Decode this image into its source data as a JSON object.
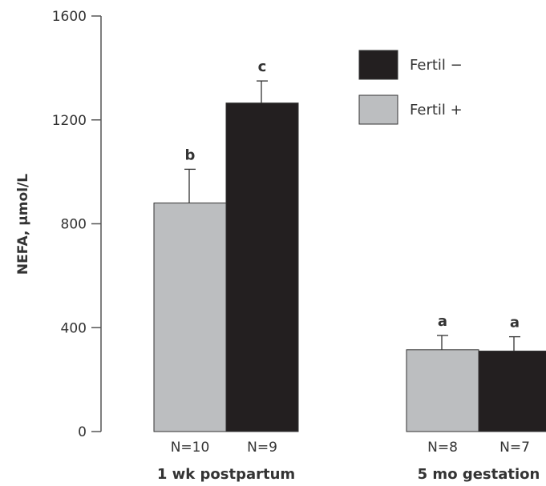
{
  "chart_data": {
    "type": "bar",
    "title": "",
    "xlabel": "",
    "ylabel": "NEFA, µmol/L",
    "ylim": [
      0,
      1600
    ],
    "yticks": [
      0,
      400,
      800,
      1200,
      1600
    ],
    "grid": false,
    "legend_position": "top-right",
    "groups": [
      {
        "label": "1 wk postpartum",
        "bars": [
          {
            "series": "Fertil +",
            "value": 880,
            "error": 130,
            "n_label": "N=10",
            "sig": "b"
          },
          {
            "series": "Fertil −",
            "value": 1265,
            "error": 85,
            "n_label": "N=9",
            "sig": "c"
          }
        ]
      },
      {
        "label": "5 mo gestation",
        "bars": [
          {
            "series": "Fertil +",
            "value": 315,
            "error": 55,
            "n_label": "N=8",
            "sig": "a"
          },
          {
            "series": "Fertil −",
            "value": 310,
            "error": 55,
            "n_label": "N=7",
            "sig": "a"
          }
        ]
      }
    ],
    "series": [
      {
        "name": "Fertil −",
        "color": "#231f20"
      },
      {
        "name": "Fertil +",
        "color": "#bcbec0"
      }
    ]
  }
}
